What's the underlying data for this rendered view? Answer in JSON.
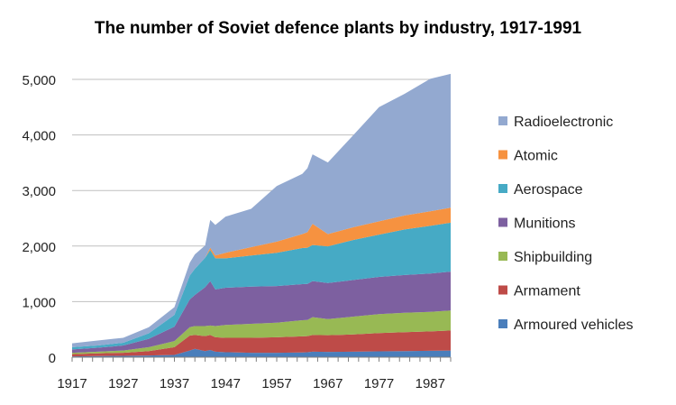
{
  "chart_data": {
    "type": "area",
    "stacked": true,
    "title": "The number of Soviet defence plants by industry, 1917-1991",
    "xlabel": "",
    "ylabel": "",
    "xlim": [
      1917,
      1991
    ],
    "ylim": [
      0,
      5000
    ],
    "x_ticks": [
      1917,
      1927,
      1937,
      1947,
      1957,
      1967,
      1977,
      1987
    ],
    "x_tick_labels": [
      "1917",
      "1927",
      "1937",
      "1947",
      "1957",
      "1967",
      "1977",
      "1987"
    ],
    "y_ticks": [
      0,
      1000,
      2000,
      3000,
      4000,
      5000
    ],
    "y_tick_labels": [
      "0",
      "1,000",
      "2,000",
      "3,000",
      "4,000",
      "5,000"
    ],
    "grid": true,
    "legend_position": "right",
    "x": [
      1917,
      1922,
      1927,
      1932,
      1937,
      1940,
      1941,
      1943,
      1944,
      1945,
      1947,
      1952,
      1957,
      1962,
      1963,
      1964,
      1967,
      1972,
      1977,
      1982,
      1987,
      1991
    ],
    "series": [
      {
        "name": "Armoured vehicles",
        "color": "#4a7ebb",
        "values": [
          15,
          20,
          25,
          30,
          40,
          120,
          150,
          110,
          130,
          100,
          90,
          80,
          80,
          85,
          90,
          100,
          95,
          100,
          105,
          110,
          115,
          120
        ]
      },
      {
        "name": "Armament",
        "color": "#be4b48",
        "values": [
          40,
          50,
          55,
          80,
          140,
          270,
          250,
          270,
          270,
          260,
          260,
          270,
          280,
          290,
          290,
          300,
          300,
          310,
          330,
          340,
          350,
          360
        ]
      },
      {
        "name": "Shipbuilding",
        "color": "#98b954",
        "values": [
          25,
          30,
          40,
          70,
          110,
          150,
          160,
          180,
          170,
          200,
          230,
          250,
          260,
          290,
          290,
          320,
          290,
          320,
          340,
          350,
          350,
          360
        ]
      },
      {
        "name": "Munitions",
        "color": "#7d60a0",
        "values": [
          60,
          70,
          90,
          150,
          260,
          500,
          560,
          700,
          800,
          660,
          670,
          670,
          660,
          650,
          650,
          650,
          650,
          660,
          670,
          680,
          690,
          700
        ]
      },
      {
        "name": "Aerospace",
        "color": "#46aac5",
        "values": [
          40,
          40,
          50,
          100,
          210,
          430,
          470,
          530,
          560,
          560,
          530,
          560,
          600,
          650,
          650,
          650,
          660,
          720,
          760,
          820,
          860,
          880
        ]
      },
      {
        "name": "Atomic",
        "color": "#f69240",
        "values": [
          0,
          0,
          0,
          0,
          0,
          0,
          0,
          0,
          40,
          50,
          100,
          150,
          200,
          250,
          280,
          380,
          220,
          230,
          240,
          250,
          260,
          270
        ]
      },
      {
        "name": "Radioelectronic",
        "color": "#93a9d0",
        "values": [
          70,
          90,
          90,
          110,
          140,
          230,
          260,
          220,
          500,
          550,
          650,
          690,
          1000,
          1085,
          1150,
          1250,
          1290,
          1660,
          2055,
          2190,
          2385,
          2410
        ]
      }
    ]
  }
}
